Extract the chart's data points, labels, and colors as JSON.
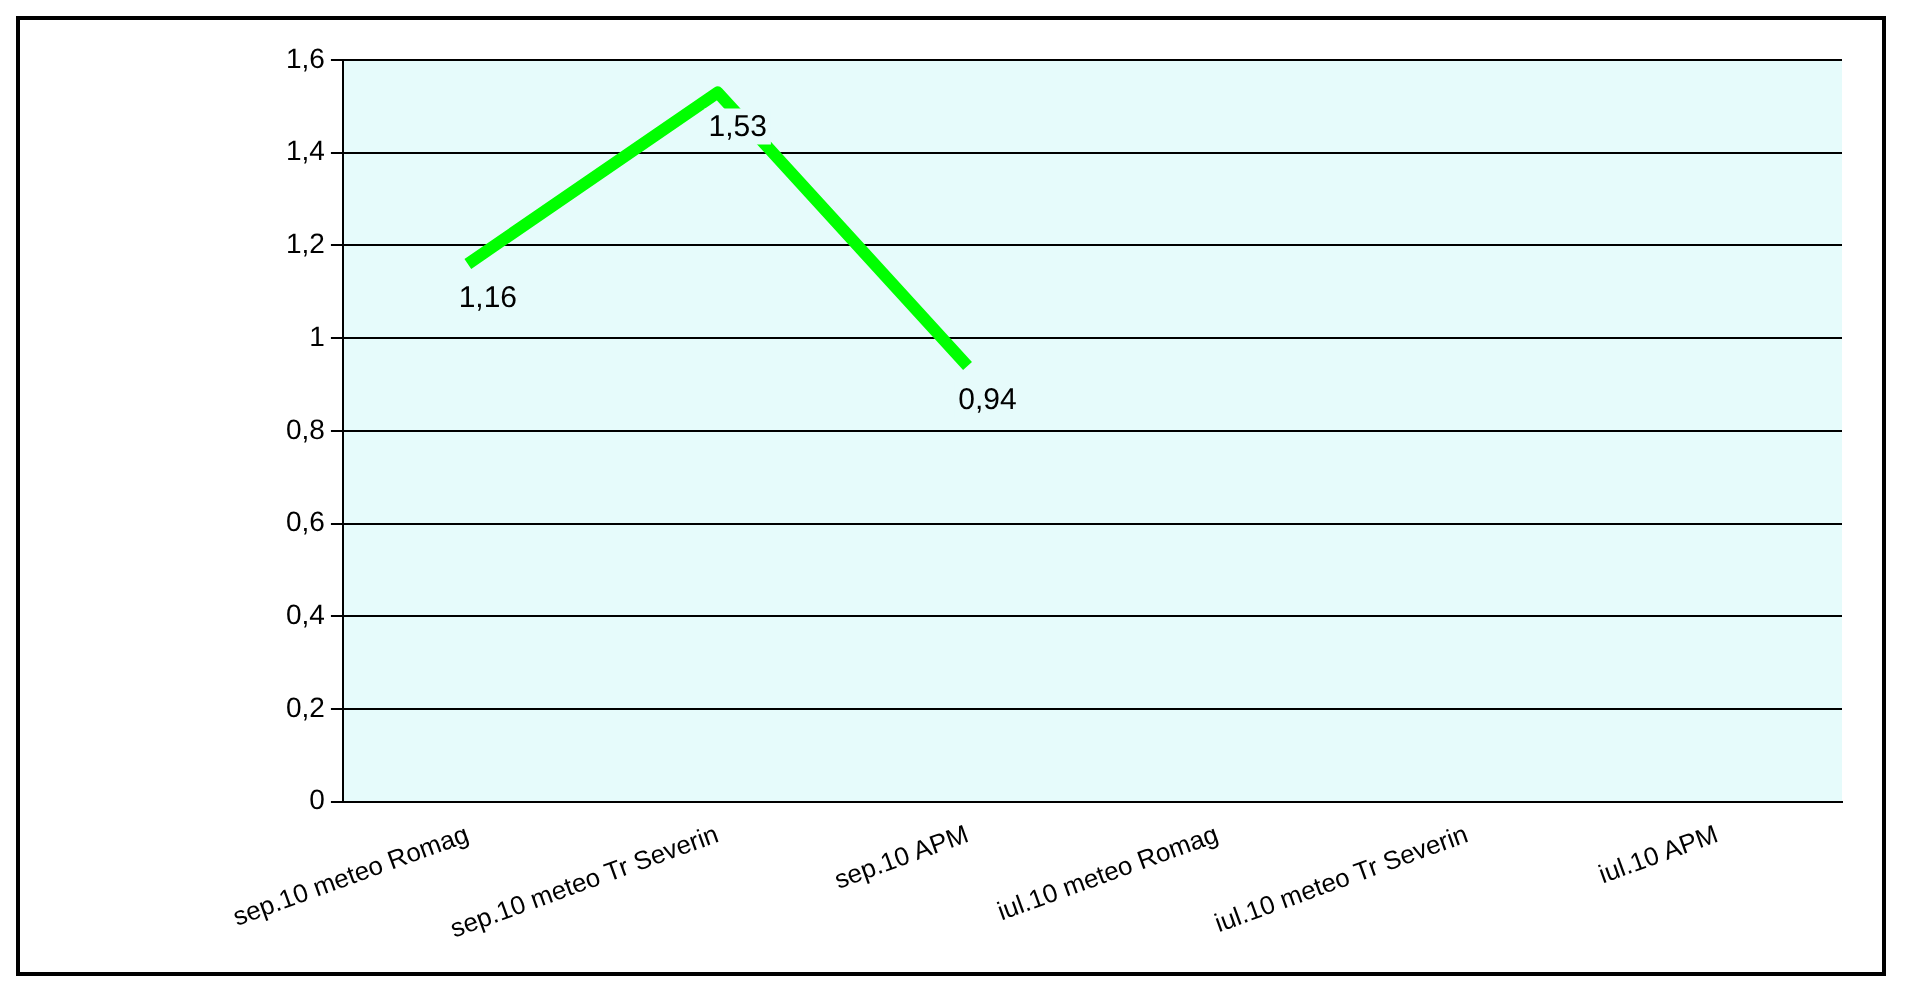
{
  "chart_data": {
    "type": "line",
    "categories": [
      "sep.10 meteo Romag",
      "sep.10 meteo Tr Severin",
      "sep.10 APM",
      "iul.10 meteo Romag",
      "iul.10 meteo Tr Severin",
      "iul.10 APM"
    ],
    "series": [
      {
        "color": "#00ff00",
        "values": [
          1.16,
          1.53,
          0.94,
          null,
          null,
          null
        ],
        "value_labels": [
          "1,16",
          "1,53",
          "0,94",
          null,
          null,
          null
        ]
      }
    ],
    "ylim": [
      0,
      1.6
    ],
    "yticks": [
      0,
      {
        "value": 0.2,
        "label": "0,2"
      },
      {
        "value": 0.4,
        "label": "0,4"
      },
      {
        "value": 0.6,
        "label": "0,6"
      },
      {
        "value": 0.8,
        "label": "0,8"
      },
      1,
      {
        "value": 1.2,
        "label": "1,2"
      },
      {
        "value": 1.4,
        "label": "1,4"
      },
      {
        "value": 1.6,
        "label": "1,6"
      }
    ],
    "grid": "y",
    "legend": false,
    "marker": "none",
    "line_style": "solid"
  }
}
